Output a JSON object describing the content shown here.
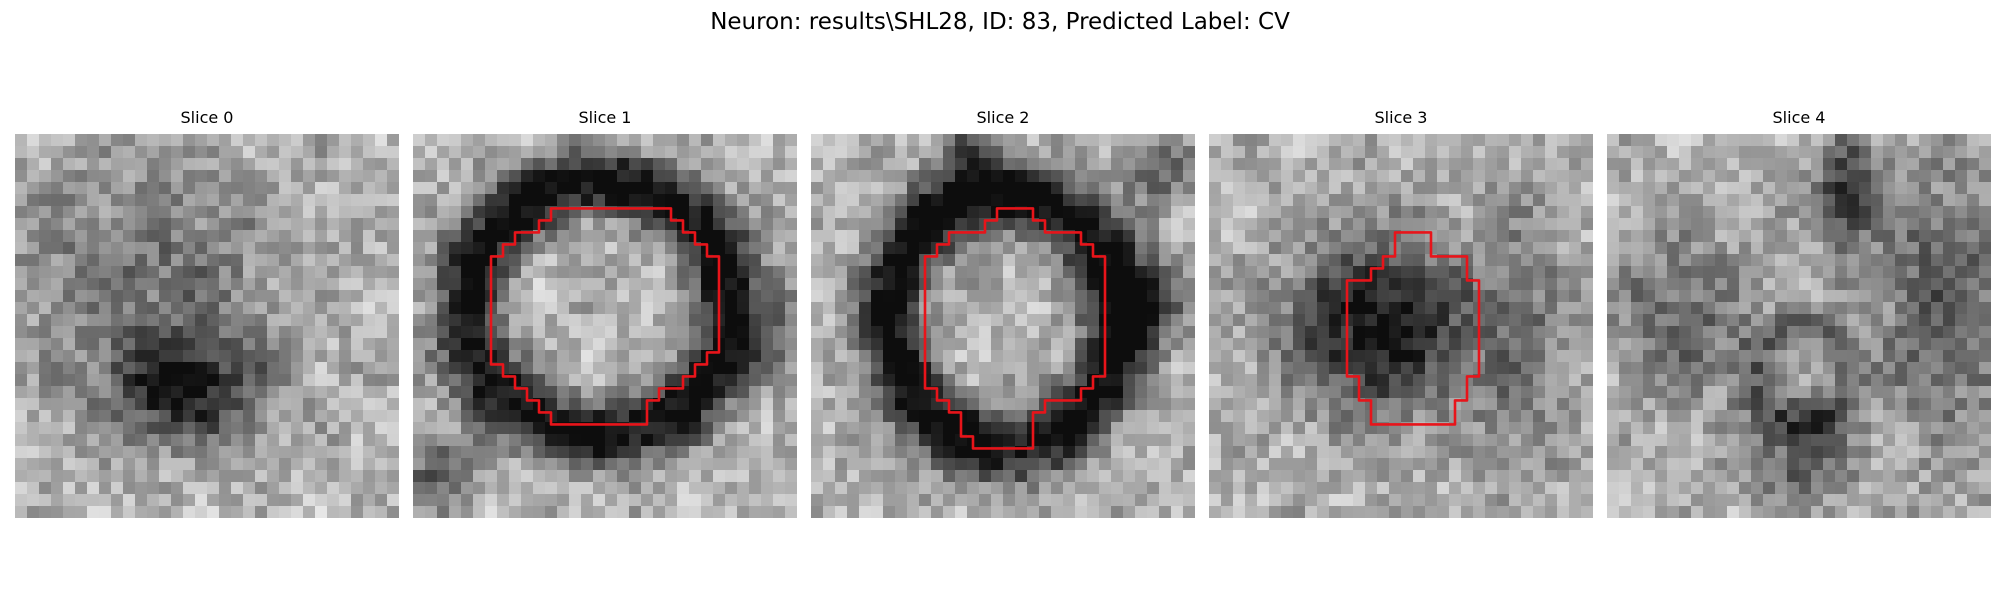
{
  "figure": {
    "title": "Neuron: results\\SHL28, ID: 83, Predicted Label: CV"
  },
  "image_grid_size": 32,
  "roi_color": "#e8141a",
  "panels": [
    {
      "title": "Slice 0",
      "has_roi": false,
      "image": "grayscale microscopy patch, dark blob lower-center"
    },
    {
      "title": "Slice 1",
      "has_roi": true,
      "image": "grayscale microscopy patch, dark ring cell body with red ROI outline"
    },
    {
      "title": "Slice 2",
      "has_roi": true,
      "image": "grayscale microscopy patch, dark ring cell body with red ROI outline"
    },
    {
      "title": "Slice 3",
      "has_roi": true,
      "image": "grayscale microscopy patch, smaller dark cell body with red ROI outline"
    },
    {
      "title": "Slice 4",
      "has_roi": false,
      "image": "grayscale microscopy patch, mottled texture with dark streaks"
    }
  ]
}
